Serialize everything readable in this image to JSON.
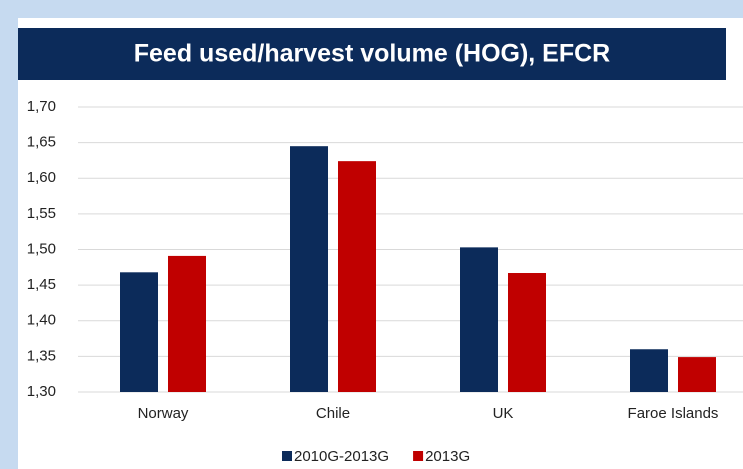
{
  "chart_data": {
    "type": "bar",
    "title": "Feed used/harvest volume (HOG), EFCR",
    "categories": [
      "Norway",
      "Chile",
      "UK",
      "Faroe Islands"
    ],
    "series": [
      {
        "name": "2010G-2013G",
        "color": "#0c2b5a",
        "values": [
          1.468,
          1.645,
          1.503,
          1.36
        ]
      },
      {
        "name": "2013G",
        "color": "#c00000",
        "values": [
          1.491,
          1.624,
          1.467,
          1.349
        ]
      }
    ],
    "ylim": [
      1.3,
      1.7
    ],
    "yticks": [
      {
        "value": 1.3,
        "label": "1,30"
      },
      {
        "value": 1.35,
        "label": "1,35"
      },
      {
        "value": 1.4,
        "label": "1,40"
      },
      {
        "value": 1.45,
        "label": "1,45"
      },
      {
        "value": 1.5,
        "label": "1,50"
      },
      {
        "value": 1.55,
        "label": "1,55"
      },
      {
        "value": 1.6,
        "label": "1,60"
      },
      {
        "value": 1.65,
        "label": "1,65"
      },
      {
        "value": 1.7,
        "label": "1,70"
      }
    ],
    "grid": true,
    "legend": "bottom"
  }
}
